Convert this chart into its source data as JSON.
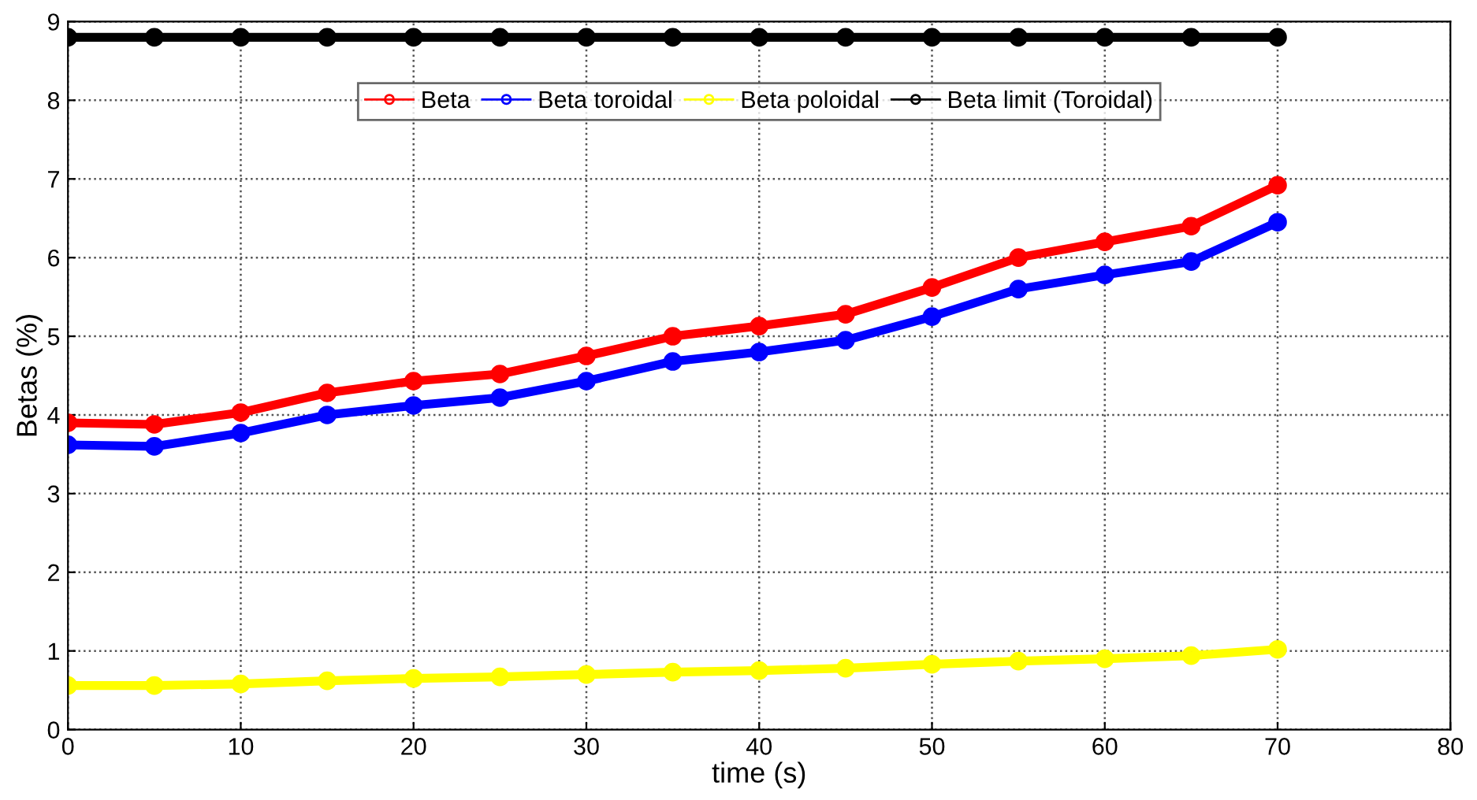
{
  "chart_data": {
    "type": "line",
    "xlabel": "time (s)",
    "ylabel": "Betas (%)",
    "x": [
      0,
      5,
      10,
      15,
      20,
      25,
      30,
      35,
      40,
      45,
      50,
      55,
      60,
      65,
      70
    ],
    "series": [
      {
        "name": "Beta",
        "color": "#ff0000",
        "values": [
          3.9,
          3.88,
          4.03,
          4.28,
          4.43,
          4.52,
          4.75,
          5.0,
          5.13,
          5.28,
          5.62,
          6.0,
          6.2,
          6.4,
          6.92
        ]
      },
      {
        "name": "Beta toroidal",
        "color": "#0000ff",
        "values": [
          3.62,
          3.6,
          3.77,
          4.0,
          4.12,
          4.22,
          4.43,
          4.68,
          4.8,
          4.95,
          5.25,
          5.6,
          5.78,
          5.95,
          6.45
        ]
      },
      {
        "name": "Beta poloidal",
        "color": "#ffff00",
        "values": [
          0.56,
          0.56,
          0.58,
          0.62,
          0.65,
          0.67,
          0.7,
          0.73,
          0.75,
          0.78,
          0.83,
          0.87,
          0.9,
          0.94,
          1.02
        ]
      },
      {
        "name": "Beta limit (Toroidal)",
        "color": "#000000",
        "values": [
          8.8,
          8.8,
          8.8,
          8.8,
          8.8,
          8.8,
          8.8,
          8.8,
          8.8,
          8.8,
          8.8,
          8.8,
          8.8,
          8.8,
          8.8
        ]
      }
    ],
    "xlim": [
      0,
      80
    ],
    "xticks": [
      0,
      10,
      20,
      30,
      40,
      50,
      60,
      70,
      80
    ],
    "ylim": [
      0,
      9
    ],
    "yticks": [
      0,
      1,
      2,
      3,
      4,
      5,
      6,
      7,
      8,
      9
    ],
    "grid": true,
    "legend": "top",
    "marker": "circle",
    "line_style": "solid"
  }
}
